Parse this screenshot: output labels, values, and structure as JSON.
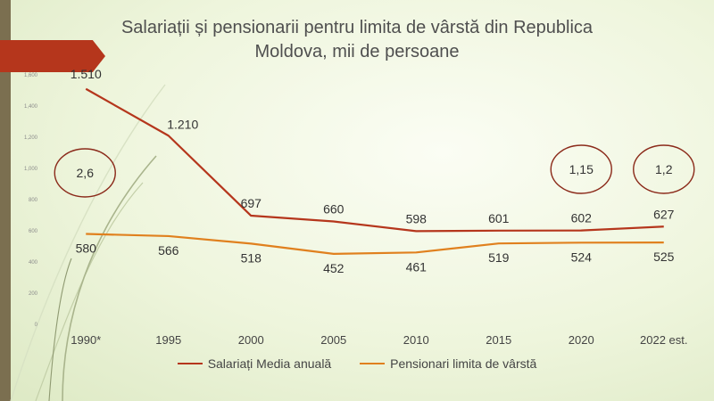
{
  "slide": {
    "title_line1": "Salariații și pensionarii pentru limita de vârstă din Republica",
    "title_line2": "Moldova, mii de persoane"
  },
  "colors": {
    "salariati": "#b5361c",
    "pensionari": "#e0801e",
    "circle": "#8b2a1a",
    "accent_arrow": "#b5361c"
  },
  "chart_data": {
    "type": "line",
    "title": "Salariații și pensionarii pentru limita de vârstă din Republica Moldova, mii de persoane",
    "categories": [
      "1990*",
      "1995",
      "2000",
      "2005",
      "2010",
      "2015",
      "2020",
      "2022 est."
    ],
    "yticks": [
      "0",
      "200",
      "400",
      "600",
      "800",
      "1,000",
      "1,200",
      "1,400",
      "1,600"
    ],
    "ylim": [
      0,
      1600
    ],
    "grid": false,
    "legend_position": "bottom",
    "series": [
      {
        "name": "Salariați Media anuală",
        "values": [
          1510,
          1210,
          697,
          660,
          598,
          601,
          602,
          627
        ],
        "labels": [
          "1.510",
          "1.210",
          "697",
          "660",
          "598",
          "601",
          "602",
          "627"
        ]
      },
      {
        "name": "Pensionari limita de vârstă",
        "values": [
          580,
          566,
          518,
          452,
          461,
          519,
          524,
          525
        ],
        "labels": [
          "580",
          "566",
          "518",
          "452",
          "461",
          "519",
          "524",
          "525"
        ]
      }
    ],
    "annotations": [
      {
        "text": "2,6",
        "category": "1990*"
      },
      {
        "text": "1,15",
        "category": "2020"
      },
      {
        "text": "1,2",
        "category": "2022 est."
      }
    ]
  }
}
